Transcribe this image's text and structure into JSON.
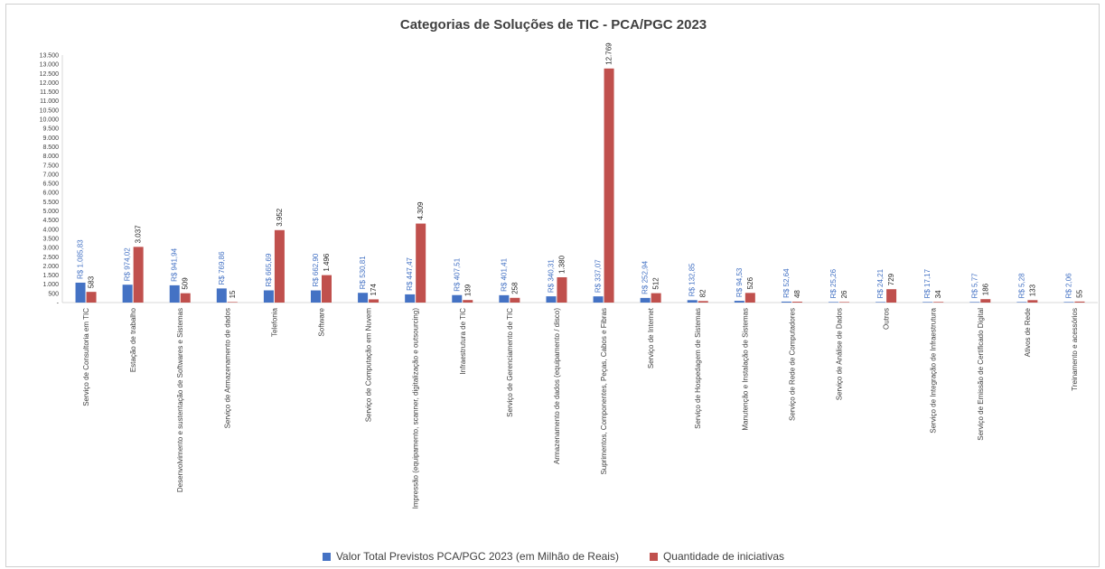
{
  "chart_data": {
    "type": "bar",
    "title": "Categorias de Soluções de TIC - PCA/PGC 2023",
    "xlabel": "",
    "ylabel": "",
    "ylim": [
      0,
      13500
    ],
    "yticks": [
      "-",
      "500",
      "1.000",
      "1.500",
      "2.000",
      "2.500",
      "3.000",
      "3.500",
      "4.000",
      "4.500",
      "5.000",
      "5.500",
      "6.000",
      "6.500",
      "7.000",
      "7.500",
      "8.000",
      "8.500",
      "9.000",
      "9.500",
      "10.000",
      "10.500",
      "11.000",
      "11.500",
      "12.000",
      "12.500",
      "13.000",
      "13.500"
    ],
    "grid": false,
    "legend_position": "bottom",
    "categories": [
      "Serviço de Consultoria em TIC",
      "Estação de trabalho",
      "Desenvolvimento e sustentação de Softwares e Sistemas",
      "Serviço de Armazenamento de dados",
      "Telefonia",
      "Software",
      "Serviço de Computação em Nuvem",
      "Impressão (equipamento, scanner, digitalização e outsourcing)",
      "Infraestrutura de TIC",
      "Serviço de Gerenciamento de TIC",
      "Armazenamento de dados (equipamento / disco)",
      "Suprimentos, Componentes, Peças, Cabos e Fibras",
      "Serviço de Internet",
      "Serviço de Hospedagem de Sistemas",
      "Manutenção e Instalação de Sistemas",
      "Serviço de Rede de Computadores",
      "Serviço de Análise de Dados",
      "Outros",
      "Serviço de Integração de Infraestrutura",
      "Serviço de Emissão de Certificado Digital",
      "Ativos de Rede",
      "Treinamento e acessórios"
    ],
    "series": [
      {
        "name": "Valor Total Previstos PCA/PGC 2023 (em Milhão de Reais)",
        "color": "#4472c4",
        "label_color": "#4472c4",
        "values": [
          1085.83,
          974.02,
          941.94,
          769.86,
          665.69,
          662.9,
          530.81,
          447.47,
          407.51,
          401.41,
          340.31,
          337.07,
          252.94,
          132.85,
          94.53,
          52.64,
          25.26,
          24.21,
          17.17,
          5.77,
          5.28,
          2.06
        ],
        "labels": [
          "R$ 1.085,83",
          "R$ 974,02",
          "R$ 941,94",
          "R$ 769,86",
          "R$ 665,69",
          "R$ 662,90",
          "R$ 530,81",
          "R$ 447,47",
          "R$ 407,51",
          "R$ 401,41",
          "R$ 340,31",
          "R$ 337,07",
          "R$ 252,94",
          "R$ 132,85",
          "R$ 94,53",
          "R$ 52,64",
          "R$ 25,26",
          "R$ 24,21",
          "R$ 17,17",
          "R$ 5,77",
          "R$ 5,28",
          "R$ 2,06"
        ]
      },
      {
        "name": "Quantidade de iniciativas",
        "color": "#c0504d",
        "label_color": "#262626",
        "values": [
          583,
          3037,
          509,
          15,
          3952,
          1496,
          174,
          4309,
          139,
          258,
          1380,
          12769,
          512,
          82,
          526,
          48,
          26,
          729,
          34,
          186,
          133,
          55
        ],
        "labels": [
          "583",
          "3.037",
          "509",
          "15",
          "3.952",
          "1.496",
          "174",
          "4.309",
          "139",
          "258",
          "1.380",
          "12.769",
          "512",
          "82",
          "526",
          "48",
          "26",
          "729",
          "34",
          "186",
          "133",
          "55"
        ]
      }
    ]
  }
}
